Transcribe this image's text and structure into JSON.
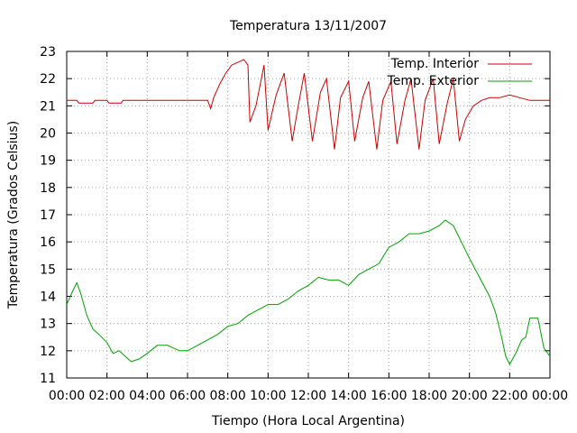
{
  "chart_data": {
    "type": "line",
    "title": "Temperatura 13/11/2007",
    "xlabel": "Tiempo (Hora Local Argentina)",
    "ylabel": "Temperatura (Grados Celsius)",
    "xlim": [
      0,
      24
    ],
    "ylim": [
      11,
      23
    ],
    "grid": true,
    "legend_position": "top-right",
    "x_ticks": [
      {
        "value": 0,
        "label": "00:00"
      },
      {
        "value": 2,
        "label": "02:00"
      },
      {
        "value": 4,
        "label": "04:00"
      },
      {
        "value": 6,
        "label": "06:00"
      },
      {
        "value": 8,
        "label": "08:00"
      },
      {
        "value": 10,
        "label": "10:00"
      },
      {
        "value": 12,
        "label": "12:00"
      },
      {
        "value": 14,
        "label": "14:00"
      },
      {
        "value": 16,
        "label": "16:00"
      },
      {
        "value": 18,
        "label": "18:00"
      },
      {
        "value": 20,
        "label": "20:00"
      },
      {
        "value": 22,
        "label": "22:00"
      },
      {
        "value": 24,
        "label": "00:00"
      }
    ],
    "y_ticks": [
      {
        "value": 11,
        "label": "11"
      },
      {
        "value": 12,
        "label": "12"
      },
      {
        "value": 13,
        "label": "13"
      },
      {
        "value": 14,
        "label": "14"
      },
      {
        "value": 15,
        "label": "15"
      },
      {
        "value": 16,
        "label": "16"
      },
      {
        "value": 17,
        "label": "17"
      },
      {
        "value": 18,
        "label": "18"
      },
      {
        "value": 19,
        "label": "19"
      },
      {
        "value": 20,
        "label": "20"
      },
      {
        "value": 21,
        "label": "21"
      },
      {
        "value": 22,
        "label": "22"
      },
      {
        "value": 23,
        "label": "23"
      }
    ],
    "series": [
      {
        "name": "Temp. Interior",
        "color": "#cc0000",
        "x": [
          0,
          0.5,
          0.6,
          1.3,
          1.4,
          2.0,
          2.1,
          2.7,
          2.8,
          5.0,
          7.0,
          7.1,
          7.15,
          7.3,
          7.6,
          7.9,
          8.2,
          8.5,
          8.8,
          9.0,
          9.1,
          9.4,
          9.8,
          10.0,
          10.4,
          10.8,
          11.2,
          11.5,
          11.8,
          12.2,
          12.6,
          12.9,
          13.3,
          13.6,
          14.0,
          14.3,
          14.7,
          15.0,
          15.4,
          15.7,
          16.1,
          16.4,
          16.8,
          17.1,
          17.5,
          17.8,
          18.2,
          18.5,
          18.9,
          19.2,
          19.5,
          19.8,
          20.2,
          20.6,
          21.0,
          21.5,
          22.0,
          22.5,
          23.0,
          24.0
        ],
        "y": [
          21.2,
          21.2,
          21.1,
          21.1,
          21.2,
          21.2,
          21.1,
          21.1,
          21.2,
          21.2,
          21.2,
          21.0,
          20.9,
          21.3,
          21.8,
          22.2,
          22.5,
          22.6,
          22.7,
          22.5,
          20.4,
          21.0,
          22.5,
          20.1,
          21.4,
          22.2,
          19.7,
          21.0,
          22.2,
          19.7,
          21.5,
          22.0,
          19.4,
          21.3,
          21.9,
          19.7,
          21.3,
          21.9,
          19.4,
          21.2,
          21.9,
          19.6,
          21.2,
          22.0,
          19.4,
          21.2,
          22.0,
          19.6,
          21.1,
          22.0,
          19.7,
          20.5,
          21.0,
          21.2,
          21.3,
          21.3,
          21.4,
          21.3,
          21.2,
          21.2
        ]
      },
      {
        "name": "Temp. Exterior",
        "color": "#00a000",
        "x": [
          0,
          0.3,
          0.5,
          0.7,
          1.0,
          1.3,
          1.6,
          2.0,
          2.3,
          2.6,
          2.9,
          3.2,
          3.6,
          4.0,
          4.5,
          5.0,
          5.6,
          6.0,
          6.5,
          7.0,
          7.5,
          8.0,
          8.5,
          9.0,
          9.5,
          10.0,
          10.5,
          11.0,
          11.5,
          12.0,
          12.5,
          13.0,
          13.5,
          14.0,
          14.5,
          15.0,
          15.5,
          16.0,
          16.5,
          17.0,
          17.5,
          18.0,
          18.5,
          18.8,
          19.2,
          19.6,
          20.0,
          20.5,
          21.0,
          21.3,
          21.6,
          21.8,
          22.0,
          22.3,
          22.6,
          22.8,
          23.0,
          23.4,
          23.7,
          24.0
        ],
        "y": [
          13.7,
          14.2,
          14.5,
          14.1,
          13.3,
          12.8,
          12.6,
          12.3,
          11.9,
          12.0,
          11.8,
          11.6,
          11.7,
          11.9,
          12.2,
          12.2,
          12.0,
          12.0,
          12.2,
          12.4,
          12.6,
          12.9,
          13.0,
          13.3,
          13.5,
          13.7,
          13.7,
          13.9,
          14.2,
          14.4,
          14.7,
          14.6,
          14.6,
          14.4,
          14.8,
          15.0,
          15.2,
          15.8,
          16.0,
          16.3,
          16.3,
          16.4,
          16.6,
          16.8,
          16.6,
          16.0,
          15.4,
          14.7,
          14.0,
          13.4,
          12.5,
          11.8,
          11.5,
          11.9,
          12.4,
          12.5,
          13.2,
          13.2,
          12.1,
          11.8
        ]
      }
    ]
  }
}
